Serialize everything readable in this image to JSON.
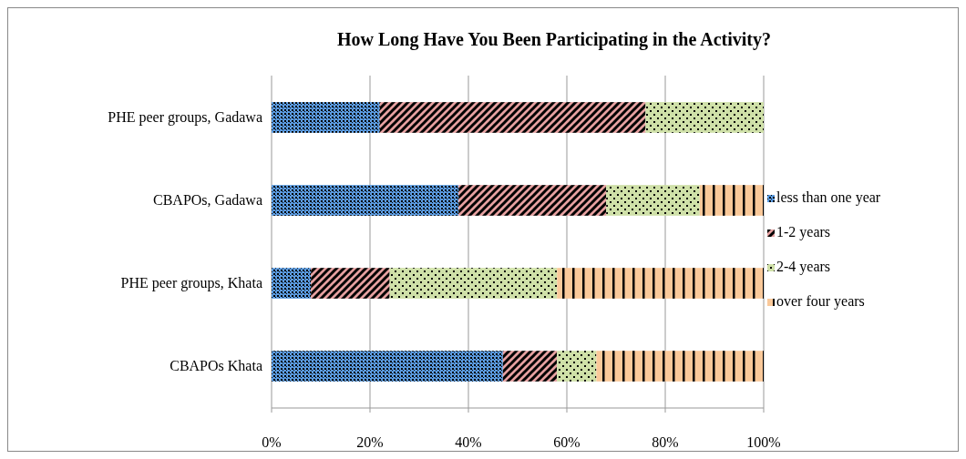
{
  "chart_data": {
    "type": "bar",
    "orientation": "horizontal",
    "stacked": true,
    "title": "How Long Have You Been Participating in the Activity?",
    "categories": [
      "PHE peer groups, Gadawa",
      "CBAPOs, Gadawa",
      "PHE peer groups, Khata",
      "CBAPOs Khata"
    ],
    "series": [
      {
        "name": "less than one year",
        "color": "#5b9be0",
        "values": [
          22,
          38,
          8,
          47
        ]
      },
      {
        "name": "1-2 years",
        "color": "#e6a0a0",
        "values": [
          54,
          30,
          16,
          11
        ]
      },
      {
        "name": "2-4 years",
        "color": "#cfe0a8",
        "values": [
          24,
          19,
          34,
          8
        ]
      },
      {
        "name": "over four years",
        "color": "#fac99a",
        "values": [
          0,
          13,
          42,
          34
        ]
      }
    ],
    "xlim": [
      0,
      100
    ],
    "xticks": [
      {
        "value": 0,
        "label": "0%"
      },
      {
        "value": 20,
        "label": "20%"
      },
      {
        "value": 40,
        "label": "40%"
      },
      {
        "value": 60,
        "label": "60%"
      },
      {
        "value": 80,
        "label": "80%"
      },
      {
        "value": 100,
        "label": "100%"
      }
    ],
    "grid": "x",
    "legend": "right"
  }
}
